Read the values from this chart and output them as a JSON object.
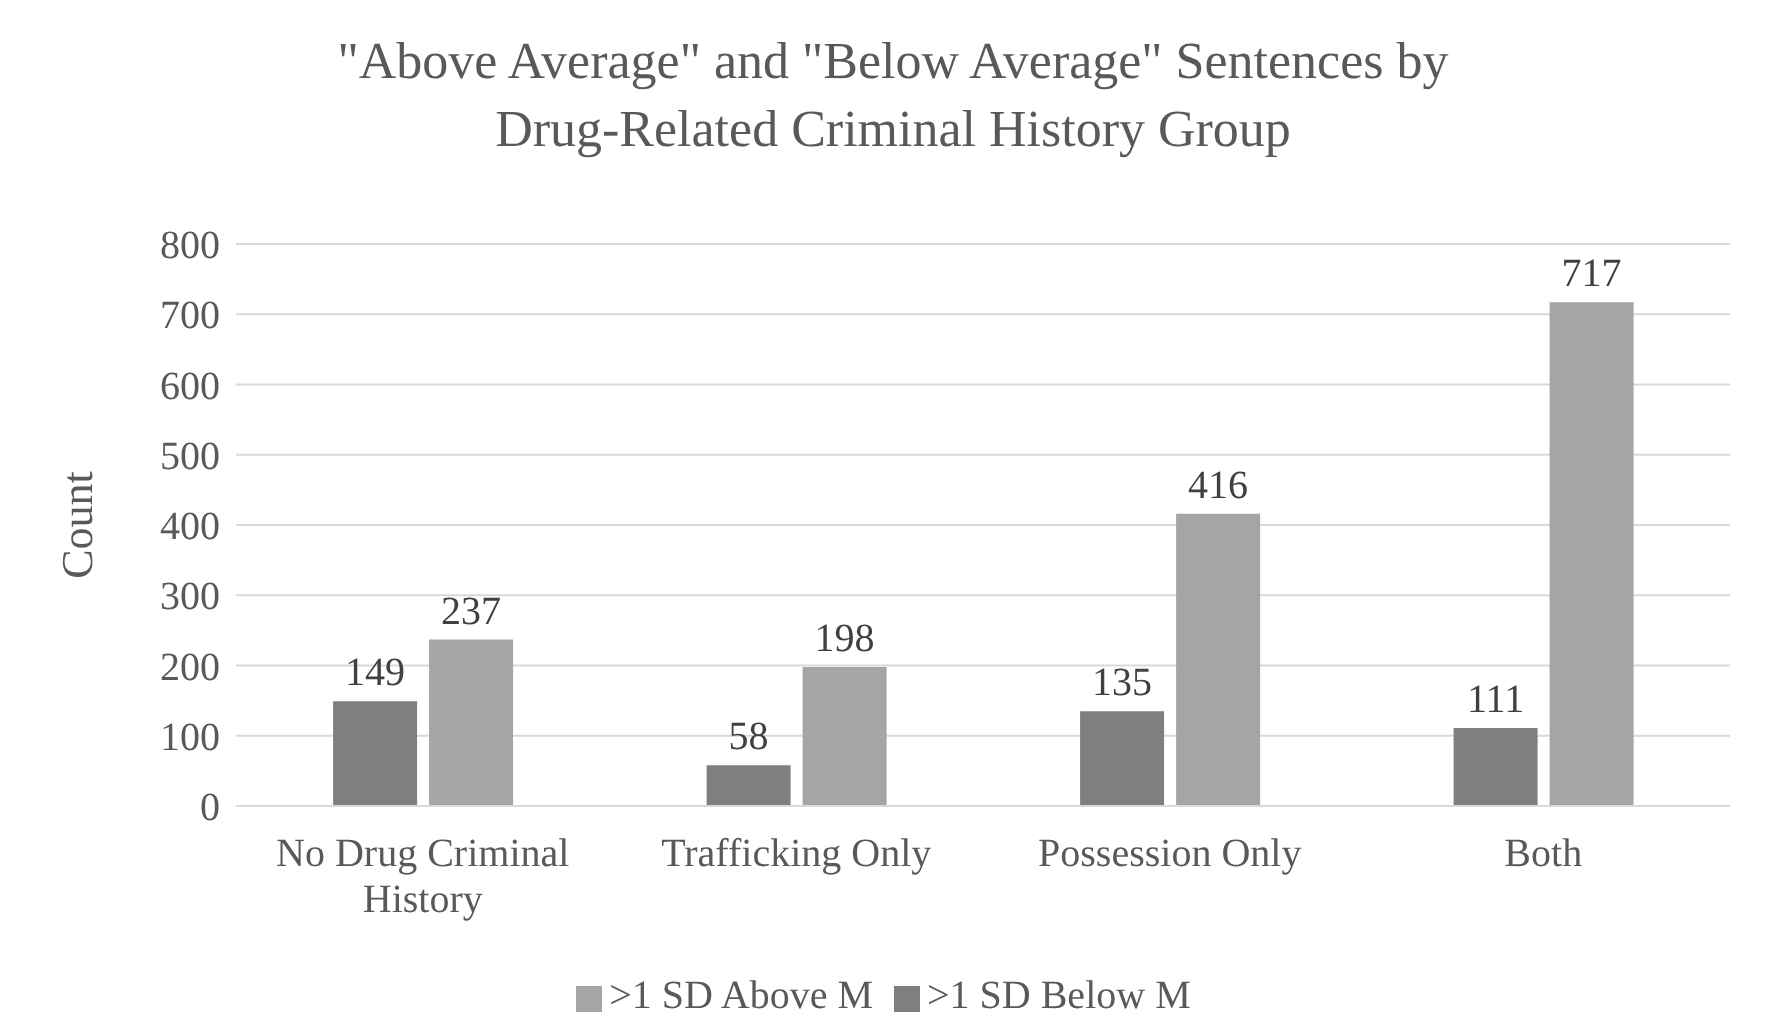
{
  "chart_data": {
    "type": "bar",
    "title": "\"Above Average\" and \"Below Average\" Sentences by Drug-Related Criminal History Group",
    "ylabel": "Count",
    "categories": [
      "No Drug Criminal History",
      "Trafficking Only",
      "Possession Only",
      "Both"
    ],
    "series": [
      {
        "name": ">1 SD Below M",
        "color": "#7f7f7f",
        "values": [
          149,
          58,
          135,
          111
        ]
      },
      {
        "name": ">1 SD Above M",
        "color": "#a5a5a5",
        "values": [
          237,
          198,
          416,
          717
        ]
      }
    ],
    "ylim": [
      0,
      800
    ],
    "yticks": [
      0,
      100,
      200,
      300,
      400,
      500,
      600,
      700,
      800
    ],
    "grid": "y",
    "legend": "bottom",
    "data_labels": true
  }
}
